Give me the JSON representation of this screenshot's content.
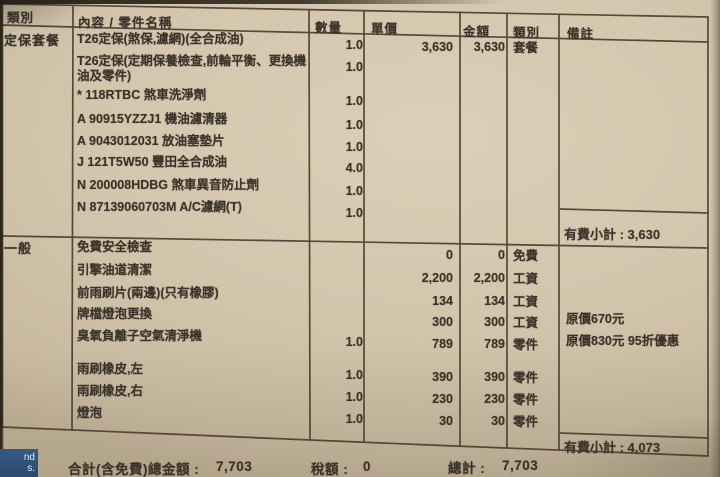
{
  "document": {
    "headers": {
      "category": "類別",
      "content": "內容 / 零件名稱",
      "qty": "數量",
      "unit_price": "單價",
      "amount": "金額",
      "type": "類別",
      "notes": "備註"
    },
    "sections": [
      {
        "category": "定保套餐",
        "subtotal": "有費小計 : 3,630",
        "rows": [
          {
            "name": "T26定保(煞保,濾網)(全合成油)",
            "qty": "1.0",
            "unit_price": "3,630",
            "amount": "3,630",
            "type": "套餐",
            "note": ""
          },
          {
            "name": "T26定保(定期保養檢查,前輪平衡、更換機油及零件)",
            "qty": "1.0",
            "unit_price": "",
            "amount": "",
            "type": "",
            "note": ""
          },
          {
            "name": "* 118RTBC 煞車洗淨劑",
            "qty": "1.0",
            "unit_price": "",
            "amount": "",
            "type": "",
            "note": ""
          },
          {
            "name": "A 90915YZZJ1 機油濾清器",
            "qty": "1.0",
            "unit_price": "",
            "amount": "",
            "type": "",
            "note": ""
          },
          {
            "name": "A 9043012031 放油塞墊片",
            "qty": "1.0",
            "unit_price": "",
            "amount": "",
            "type": "",
            "note": ""
          },
          {
            "name": "J 121T5W50 豐田全合成油",
            "qty": "4.0",
            "unit_price": "",
            "amount": "",
            "type": "",
            "note": ""
          },
          {
            "name": "N 200008HDBG 煞車異音防止劑",
            "qty": "1.0",
            "unit_price": "",
            "amount": "",
            "type": "",
            "note": ""
          },
          {
            "name": "N 87139060703M A/C濾網(T)",
            "qty": "1.0",
            "unit_price": "",
            "amount": "",
            "type": "",
            "note": ""
          }
        ]
      },
      {
        "category": "一般",
        "subtotal": "有費小計 : 4,073",
        "rows": [
          {
            "name": "免費安全檢查",
            "qty": "",
            "unit_price": "0",
            "amount": "0",
            "type": "免費",
            "note": ""
          },
          {
            "name": "引擎油道清潔",
            "qty": "",
            "unit_price": "2,200",
            "amount": "2,200",
            "type": "工資",
            "note": ""
          },
          {
            "name": "前雨刷片(兩邊)(只有橡膠)",
            "qty": "",
            "unit_price": "134",
            "amount": "134",
            "type": "工資",
            "note": ""
          },
          {
            "name": "牌檔燈泡更換",
            "qty": "",
            "unit_price": "300",
            "amount": "300",
            "type": "工資",
            "note": "原價670元"
          },
          {
            "name": "臭氧負離子空氣清淨機",
            "qty": "1.0",
            "unit_price": "789",
            "amount": "789",
            "type": "零件",
            "note": "原價830元 95折優惠"
          },
          {
            "name": "雨刷橡皮,左",
            "qty": "1.0",
            "unit_price": "390",
            "amount": "390",
            "type": "零件",
            "note": ""
          },
          {
            "name": "雨刷橡皮,右",
            "qty": "1.0",
            "unit_price": "230",
            "amount": "230",
            "type": "零件",
            "note": ""
          },
          {
            "name": "燈泡",
            "qty": "1.0",
            "unit_price": "30",
            "amount": "30",
            "type": "零件",
            "note": ""
          }
        ]
      }
    ],
    "footer": {
      "total_label": "合計(含免費)總金額 :",
      "total_value": "7,703",
      "tax_label": "稅額 :",
      "tax_value": "0",
      "grand_label": "總計 :",
      "grand_value": "7,703"
    },
    "os_overlay": {
      "line1": "nd",
      "line2": "s."
    }
  }
}
